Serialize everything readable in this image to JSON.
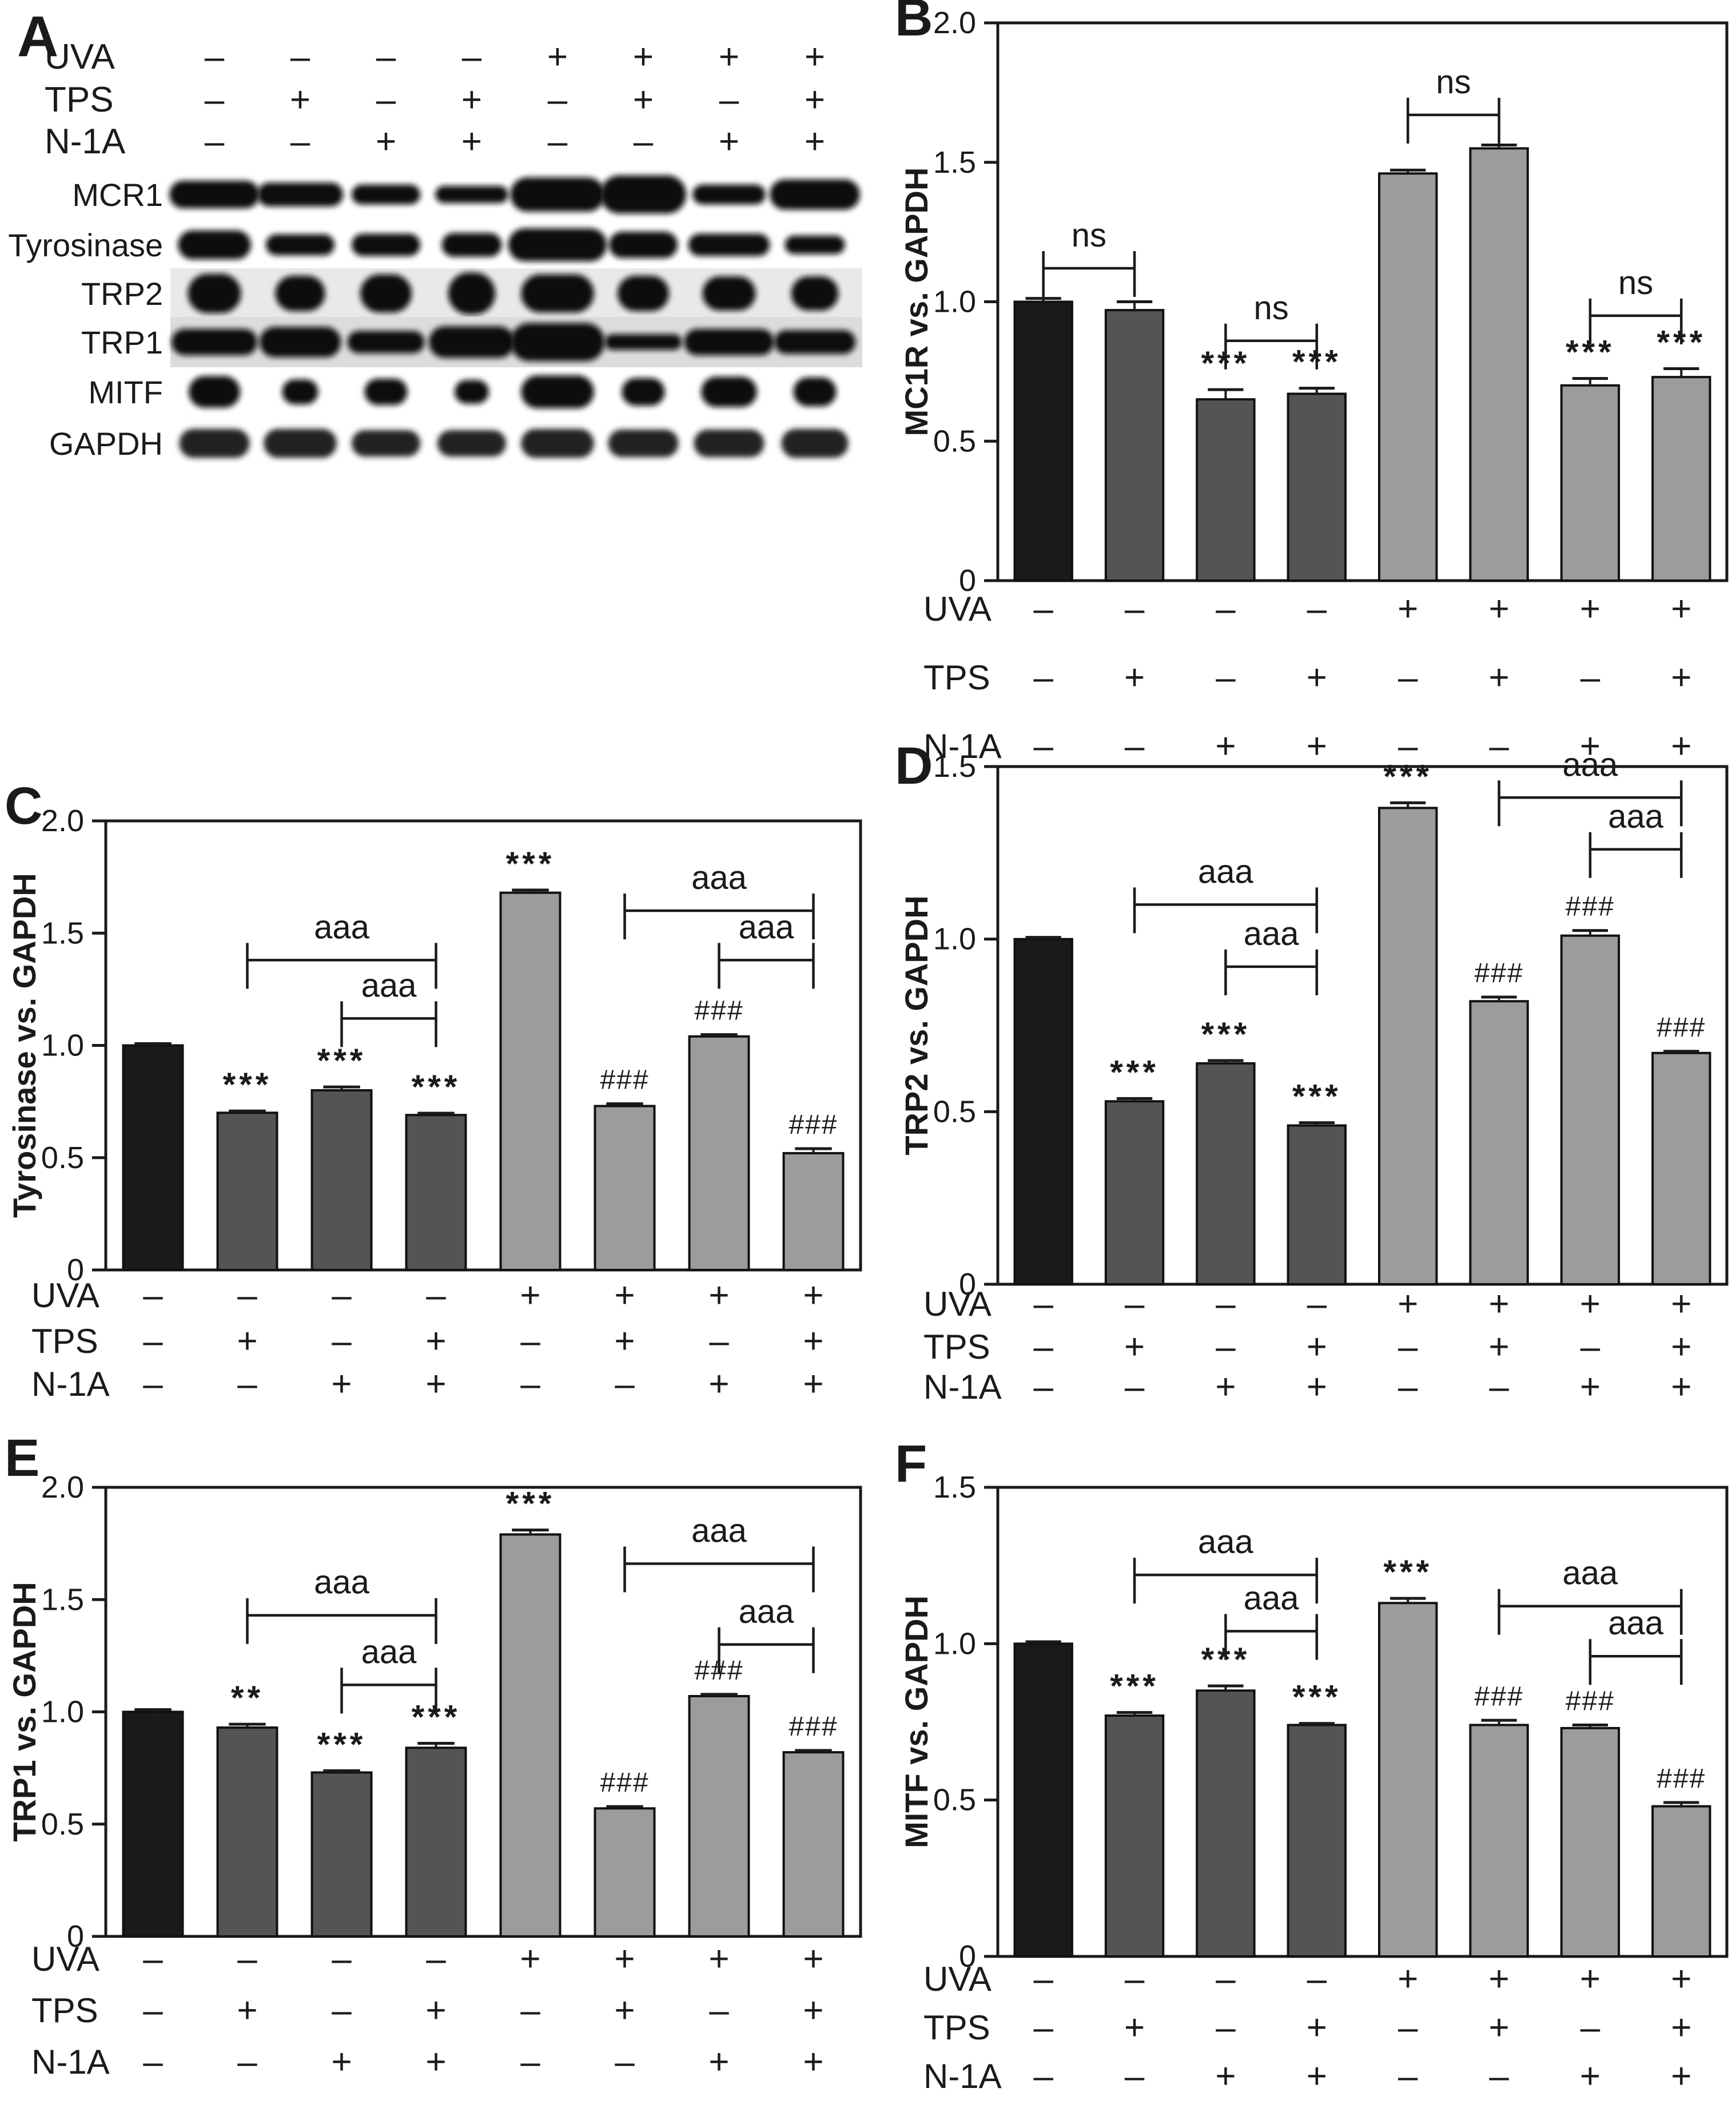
{
  "figure_bg": "#ffffff",
  "colors": {
    "bar_control": "#1a1a1a",
    "bar_dark": "#545454",
    "bar_light": "#9c9c9c",
    "bar_stroke": "#111111",
    "axis": "#1a1a1a",
    "band": "#0d0d0d",
    "gapdh_band": "#242424",
    "trp2_strip_bg": "#e9e9e9",
    "trp1_strip_bg": "#dcdcdc",
    "text": "#1a1a1a"
  },
  "conditions": {
    "rows": [
      {
        "label": "UVA",
        "signs": [
          "–",
          "–",
          "–",
          "–",
          "+",
          "+",
          "+",
          "+"
        ]
      },
      {
        "label": "TPS",
        "signs": [
          "–",
          "+",
          "–",
          "+",
          "–",
          "+",
          "–",
          "+"
        ]
      },
      {
        "label": "N-1A",
        "signs": [
          "–",
          "–",
          "+",
          "+",
          "–",
          "–",
          "+",
          "+"
        ]
      }
    ]
  },
  "panel_a": {
    "label": "A",
    "blot_rows": [
      {
        "label": "MCR1",
        "strip_bg": "none",
        "band_color": "band",
        "bands": [
          [
            1.05,
            1.05
          ],
          [
            1.0,
            0.9
          ],
          [
            0.8,
            0.75
          ],
          [
            0.85,
            0.65
          ],
          [
            1.1,
            1.3
          ],
          [
            1.0,
            1.45
          ],
          [
            0.85,
            0.75
          ],
          [
            1.05,
            1.15
          ]
        ]
      },
      {
        "label": "Tyrosinase",
        "strip_bg": "none",
        "band_color": "band",
        "bands": [
          [
            0.85,
            1.1
          ],
          [
            0.8,
            0.8
          ],
          [
            0.8,
            0.85
          ],
          [
            0.7,
            0.9
          ],
          [
            1.15,
            1.25
          ],
          [
            0.8,
            1.0
          ],
          [
            0.95,
            0.85
          ],
          [
            0.7,
            0.7
          ]
        ]
      },
      {
        "label": "TRP2",
        "strip_bg": "trp2_strip_bg",
        "band_color": "band",
        "bands": [
          [
            0.62,
            1.5
          ],
          [
            0.58,
            1.35
          ],
          [
            0.6,
            1.45
          ],
          [
            0.55,
            1.6
          ],
          [
            0.85,
            1.45
          ],
          [
            0.6,
            1.35
          ],
          [
            0.62,
            1.3
          ],
          [
            0.55,
            1.3
          ]
        ]
      },
      {
        "label": "TRP1",
        "strip_bg": "trp1_strip_bg",
        "band_color": "band",
        "bands": [
          [
            1.0,
            1.0
          ],
          [
            0.95,
            1.15
          ],
          [
            0.9,
            0.85
          ],
          [
            1.0,
            1.2
          ],
          [
            1.1,
            1.45
          ],
          [
            0.9,
            0.6
          ],
          [
            1.05,
            1.0
          ],
          [
            0.95,
            0.9
          ]
        ]
      },
      {
        "label": "MITF",
        "strip_bg": "none",
        "band_color": "band",
        "bands": [
          [
            0.6,
            1.2
          ],
          [
            0.42,
            0.95
          ],
          [
            0.5,
            1.0
          ],
          [
            0.4,
            0.9
          ],
          [
            0.85,
            1.25
          ],
          [
            0.5,
            1.05
          ],
          [
            0.65,
            1.15
          ],
          [
            0.5,
            1.1
          ]
        ]
      },
      {
        "label": "GAPDH",
        "strip_bg": "none",
        "band_color": "gapdh_band",
        "bands": [
          [
            0.82,
            1.1
          ],
          [
            0.85,
            1.1
          ],
          [
            0.8,
            1.0
          ],
          [
            0.8,
            1.0
          ],
          [
            0.85,
            1.1
          ],
          [
            0.82,
            1.05
          ],
          [
            0.82,
            1.05
          ],
          [
            0.78,
            1.1
          ]
        ]
      }
    ]
  },
  "chart_data": [
    {
      "id": "B",
      "panel_label": "B",
      "type": "bar",
      "ylabel": "MC1R vs. GAPDH",
      "ylim": [
        0,
        2.0
      ],
      "yticks": [
        "0",
        "0.5",
        "1.0",
        "1.5",
        "2.0"
      ],
      "values": [
        1.0,
        0.97,
        0.65,
        0.67,
        1.46,
        1.55,
        0.7,
        0.73
      ],
      "errors": [
        0.012,
        0.03,
        0.035,
        0.02,
        0.012,
        0.012,
        0.025,
        0.03
      ],
      "bar_groups": [
        1,
        2,
        2,
        2,
        3,
        3,
        3,
        3
      ],
      "significance": [
        "",
        "",
        "***",
        "***",
        "",
        "",
        "***",
        "***"
      ],
      "brackets": [
        {
          "from": 1,
          "to": 2,
          "label": "ns",
          "y": 1.12
        },
        {
          "from": 3,
          "to": 4,
          "label": "ns",
          "y": 0.86
        },
        {
          "from": 5,
          "to": 6,
          "label": "ns",
          "y": 1.67
        },
        {
          "from": 7,
          "to": 8,
          "label": "ns",
          "y": 0.95
        }
      ]
    },
    {
      "id": "C",
      "panel_label": "C",
      "type": "bar",
      "ylabel": "Tyrosinase vs. GAPDH",
      "ylim": [
        0,
        2.0
      ],
      "yticks": [
        "0",
        "0.5",
        "1.0",
        "1.5",
        "2.0"
      ],
      "values": [
        1.0,
        0.7,
        0.8,
        0.69,
        1.68,
        0.73,
        1.04,
        0.52
      ],
      "errors": [
        0.008,
        0.008,
        0.015,
        0.008,
        0.012,
        0.01,
        0.008,
        0.02
      ],
      "bar_groups": [
        1,
        2,
        2,
        2,
        3,
        3,
        3,
        3
      ],
      "significance": [
        "",
        "***",
        "***",
        "***",
        "***",
        "###",
        "###",
        "###"
      ],
      "brackets": [
        {
          "from": 2,
          "to": 4,
          "label": "aaa",
          "y": 1.38
        },
        {
          "from": 3,
          "to": 4,
          "label": "aaa",
          "y": 1.12
        },
        {
          "from": 6,
          "to": 8,
          "label": "aaa",
          "y": 1.6
        },
        {
          "from": 7,
          "to": 8,
          "label": "aaa",
          "y": 1.38
        }
      ]
    },
    {
      "id": "D",
      "panel_label": "D",
      "type": "bar",
      "ylabel": "TRP2 vs. GAPDH",
      "ylim": [
        0,
        1.5
      ],
      "yticks": [
        "0",
        "0.5",
        "1.0",
        "1.5"
      ],
      "values": [
        1.0,
        0.53,
        0.64,
        0.46,
        1.38,
        0.82,
        1.01,
        0.67
      ],
      "errors": [
        0.005,
        0.008,
        0.008,
        0.008,
        0.015,
        0.012,
        0.015,
        0.005
      ],
      "bar_groups": [
        1,
        2,
        2,
        2,
        3,
        3,
        3,
        3
      ],
      "significance": [
        "",
        "***",
        "***",
        "***",
        "***",
        "###",
        "###",
        "###"
      ],
      "brackets": [
        {
          "from": 2,
          "to": 4,
          "label": "aaa",
          "y": 1.1
        },
        {
          "from": 3,
          "to": 4,
          "label": "aaa",
          "y": 0.92
        },
        {
          "from": 6,
          "to": 8,
          "label": "aaa",
          "y": 1.41
        },
        {
          "from": 7,
          "to": 8,
          "label": "aaa",
          "y": 1.26
        }
      ]
    },
    {
      "id": "E",
      "panel_label": "E",
      "type": "bar",
      "ylabel": "TRP1 vs. GAPDH",
      "ylim": [
        0,
        2.0
      ],
      "yticks": [
        "0",
        "0.5",
        "1.0",
        "1.5",
        "2.0"
      ],
      "values": [
        1.0,
        0.93,
        0.73,
        0.84,
        1.79,
        0.57,
        1.07,
        0.82
      ],
      "errors": [
        0.01,
        0.015,
        0.008,
        0.02,
        0.02,
        0.008,
        0.008,
        0.008
      ],
      "bar_groups": [
        1,
        2,
        2,
        2,
        3,
        3,
        3,
        3
      ],
      "significance": [
        "",
        "**",
        "***",
        "***",
        "***",
        "###",
        "###",
        "###"
      ],
      "brackets": [
        {
          "from": 2,
          "to": 4,
          "label": "aaa",
          "y": 1.43
        },
        {
          "from": 3,
          "to": 4,
          "label": "aaa",
          "y": 1.12
        },
        {
          "from": 6,
          "to": 8,
          "label": "aaa",
          "y": 1.66
        },
        {
          "from": 7,
          "to": 8,
          "label": "aaa",
          "y": 1.3
        }
      ]
    },
    {
      "id": "F",
      "panel_label": "F",
      "type": "bar",
      "ylabel": "MITF vs. GAPDH",
      "ylim": [
        0,
        1.5
      ],
      "yticks": [
        "0",
        "0.5",
        "1.0",
        "1.5"
      ],
      "values": [
        1.0,
        0.77,
        0.85,
        0.74,
        1.13,
        0.74,
        0.73,
        0.48
      ],
      "errors": [
        0.006,
        0.01,
        0.015,
        0.005,
        0.015,
        0.015,
        0.01,
        0.012
      ],
      "bar_groups": [
        1,
        2,
        2,
        2,
        3,
        3,
        3,
        3
      ],
      "significance": [
        "",
        "***",
        "***",
        "***",
        "***",
        "###",
        "###",
        "###"
      ],
      "brackets": [
        {
          "from": 2,
          "to": 4,
          "label": "aaa",
          "y": 1.22
        },
        {
          "from": 3,
          "to": 4,
          "label": "aaa",
          "y": 1.04
        },
        {
          "from": 6,
          "to": 8,
          "label": "aaa",
          "y": 1.12
        },
        {
          "from": 7,
          "to": 8,
          "label": "aaa",
          "y": 0.96
        }
      ]
    }
  ]
}
